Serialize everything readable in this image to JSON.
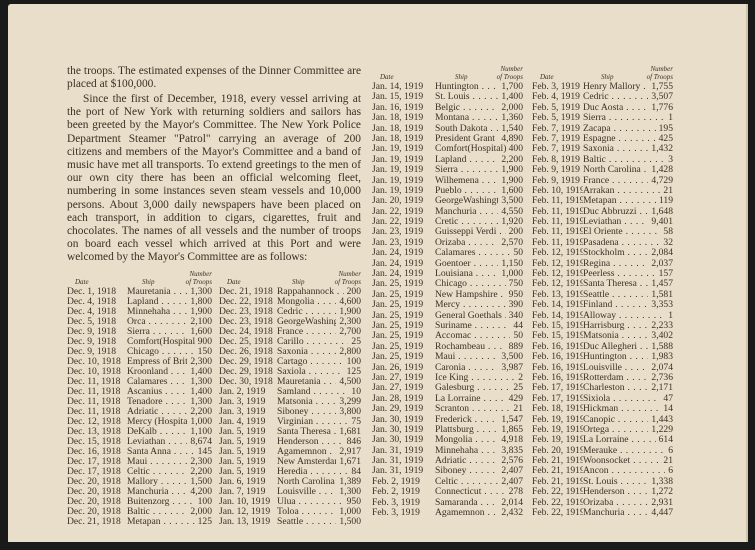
{
  "text": {
    "paragraph_1": "the troops. The estimated expenses of the Dinner Committee are placed at $100,000.",
    "paragraph_2": "Since the first of December, 1918, every vessel arriving at the port of New York with returning soldiers and sailors has been greeted by the Mayor's Committee. The New York Police Department Steamer \"Patrol\" carrying an average of 200 citizens and members of the Mayor's Committee and a band of music have met all transports. To extend greetings to the men of our own city there has been an official welcoming fleet, numbering in some instances seven steam vessels and 10,000 persons. About 3,000 daily newspapers have been placed on each transport, in addition to cigars, cigarettes, fruit and chocolates. The names of all vessels and the number of troops on board each vessel which arrived at this Port and were welcomed by the Mayor's Committee are as follows:"
  },
  "headers": {
    "date": "Date",
    "ship": "Ship",
    "number_1": "Number",
    "number_2": "of Troops"
  },
  "tables": [
    [
      [
        "Dec. 1, 1918",
        "Mauretania",
        "1,300"
      ],
      [
        "Dec. 4, 1918",
        "Lapland",
        "1,800"
      ],
      [
        "Dec. 4, 1918",
        "Minnehaha",
        "1,900"
      ],
      [
        "Dec. 5, 1918",
        "Orca",
        "2,100"
      ],
      [
        "Dec. 9, 1918",
        "Sierra",
        "1,600"
      ],
      [
        "Dec. 9, 1918",
        "Comfort(Hospital)",
        "900"
      ],
      [
        "Dec. 9, 1918",
        "Chicago",
        "150"
      ],
      [
        "Dec. 10, 1918",
        "Empress of Britain",
        "2,300"
      ],
      [
        "Dec. 10, 1918",
        "Kroonland",
        "1,400"
      ],
      [
        "Dec. 11, 1918",
        "Calamares",
        "1,300"
      ],
      [
        "Dec. 11, 1918",
        "Ascanius",
        "1,400"
      ],
      [
        "Dec. 11, 1918",
        "Tenadore",
        "1,300"
      ],
      [
        "Dec. 11, 1918",
        "Adriatic",
        "2,200"
      ],
      [
        "Dec. 12, 1918",
        "Mercy (Hospital)",
        "1,000"
      ],
      [
        "Dec. 13, 1918",
        "DeKalb",
        "1,100"
      ],
      [
        "Dec. 15, 1918",
        "Leviathan",
        "8,674"
      ],
      [
        "Dec. 16, 1918",
        "Santa Anna",
        "145"
      ],
      [
        "Dec. 17, 1918",
        "Maui",
        "2,300"
      ],
      [
        "Dec. 17, 1918",
        "Celtic",
        "2,200"
      ],
      [
        "Dec. 20, 1918",
        "Mallory",
        "1,500"
      ],
      [
        "Dec. 20, 1918",
        "Manchuria",
        "4,200"
      ],
      [
        "Dec. 20, 1918",
        "Buitenzorg",
        "100"
      ],
      [
        "Dec. 20, 1918",
        "Baltic",
        "2,000"
      ],
      [
        "Dec. 21, 1918",
        "Metapan",
        "125"
      ]
    ],
    [
      [
        "Dec. 21, 1918",
        "Rappahannock",
        "200"
      ],
      [
        "Dec. 22, 1918",
        "Mongolia",
        "4,600"
      ],
      [
        "Dec. 23, 1918",
        "Cedric",
        "1,900"
      ],
      [
        "Dec. 23, 1918",
        "GeorgeWashington",
        "2,300"
      ],
      [
        "Dec. 24, 1918",
        "France",
        "2,700"
      ],
      [
        "Dec. 25, 1918",
        "Carillo",
        "25"
      ],
      [
        "Dec. 26, 1918",
        "Saxonia",
        "2,800"
      ],
      [
        "Dec. 29, 1918",
        "Cartago",
        "100"
      ],
      [
        "Dec. 29, 1918",
        "Saxiola",
        "125"
      ],
      [
        "Dec. 30, 1918",
        "Mauretania",
        "4,500"
      ],
      [
        "Jan. 2, 1919",
        "Samland",
        "10"
      ],
      [
        "Jan. 3, 1919",
        "Matsonia",
        "3,299"
      ],
      [
        "Jan. 3, 1919",
        "Siboney",
        "3,800"
      ],
      [
        "Jan. 4, 1919",
        "Virginian",
        "75"
      ],
      [
        "Jan. 5, 1919",
        "Santa Theresa",
        "1,681"
      ],
      [
        "Jan. 5, 1919",
        "Henderson",
        "846"
      ],
      [
        "Jan. 5, 1919",
        "Agamemnon",
        "2,917"
      ],
      [
        "Jan. 5, 1919",
        "New Amsterdam",
        "1,671"
      ],
      [
        "Jan. 5, 1919",
        "Heredia",
        "84"
      ],
      [
        "Jan. 6, 1919",
        "North Carolina",
        "1,389"
      ],
      [
        "Jan. 7, 1919",
        "Louisville",
        "1,300"
      ],
      [
        "Jan. 10, 1919",
        "Ulua",
        "950"
      ],
      [
        "Jan. 12, 1919",
        "Toloa",
        "1,000"
      ],
      [
        "Jan. 13, 1919",
        "Seattle",
        "1,500"
      ]
    ],
    [
      [
        "Jan. 14, 1919",
        "Huntington",
        "1,700"
      ],
      [
        "Jan. 15, 1919",
        "St. Louis",
        "1,400"
      ],
      [
        "Jan. 16, 1919",
        "Belgic",
        "2,000"
      ],
      [
        "Jan. 18, 1919",
        "Montana",
        "1,360"
      ],
      [
        "Jan. 18, 1919",
        "South Dakota",
        "1,540"
      ],
      [
        "Jan. 18, 1919",
        "President Grant",
        "4,890"
      ],
      [
        "Jan. 19, 1919",
        "Comfort(Hospital)",
        "400"
      ],
      [
        "Jan. 19, 1919",
        "Lapland",
        "2,200"
      ],
      [
        "Jan. 19, 1919",
        "Sierra",
        "1,900"
      ],
      [
        "Jan. 19, 1919",
        "Wilhemena",
        "1,900"
      ],
      [
        "Jan. 19, 1919",
        "Pueblo",
        "1,600"
      ],
      [
        "Jan. 20, 1919",
        "GeorgeWashington",
        "3,500"
      ],
      [
        "Jan. 22, 1919",
        "Manchuria",
        "4,550"
      ],
      [
        "Jan. 22, 1919",
        "Cretic",
        "1,920"
      ],
      [
        "Jan. 23, 1919",
        "Guisseppi Verdi",
        "200"
      ],
      [
        "Jan. 23, 1919",
        "Orizaba",
        "2,570"
      ],
      [
        "Jan. 24, 1919",
        "Calamares",
        "50"
      ],
      [
        "Jan. 24, 1919",
        "Goentoer",
        "1,150"
      ],
      [
        "Jan. 24, 1919",
        "Louisiana",
        "1,000"
      ],
      [
        "Jan. 25, 1919",
        "Chicago",
        "750"
      ],
      [
        "Jan. 25, 1919",
        "New Hampshire",
        "950"
      ],
      [
        "Jan. 25, 1919",
        "Mercy",
        "390"
      ],
      [
        "Jan. 25, 1919",
        "General Goethals",
        "340"
      ],
      [
        "Jan. 25, 1919",
        "Suriname",
        "44"
      ],
      [
        "Jan. 25, 1919",
        "Accomac",
        "50"
      ],
      [
        "Jan. 25, 1919",
        "Rochambeau",
        "889"
      ],
      [
        "Jan. 25, 1919",
        "Maui",
        "3,500"
      ],
      [
        "Jan. 26, 1919",
        "Caronia",
        "3,987"
      ],
      [
        "Jan. 27, 1919",
        "Ice King",
        "2"
      ],
      [
        "Jan. 27, 1919",
        "Galesburg",
        "25"
      ],
      [
        "Jan. 28, 1919",
        "La Lorraine",
        "429"
      ],
      [
        "Jan. 29, 1919",
        "Scranton",
        "21"
      ],
      [
        "Jan. 30, 1919",
        "Frederick",
        "1,547"
      ],
      [
        "Jan. 30, 1919",
        "Plattsburg",
        "1,865"
      ],
      [
        "Jan. 30, 1919",
        "Mongolia",
        "4,918"
      ],
      [
        "Jan. 31, 1919",
        "Minnehaha",
        "3,835"
      ],
      [
        "Jan. 31, 1919",
        "Adriatic",
        "2,576"
      ],
      [
        "Jan. 31, 1919",
        "Siboney",
        "2,407"
      ],
      [
        "Feb. 2, 1919",
        "Celtic",
        "2,407"
      ],
      [
        "Feb. 2, 1919",
        "Connecticut",
        "278"
      ],
      [
        "Feb. 3, 1919",
        "Samaranda",
        "2,014"
      ],
      [
        "Feb. 3, 1919",
        "Agamemnon",
        "2,432"
      ]
    ],
    [
      [
        "Feb. 3, 1919",
        "Henry Mallory",
        "1,755"
      ],
      [
        "Feb. 4, 1919",
        "Cedric",
        "3,507"
      ],
      [
        "Feb. 5, 1919",
        "Duc Aosta",
        "1,776"
      ],
      [
        "Feb. 5, 1919",
        "Sierra",
        "1"
      ],
      [
        "Feb. 7, 1919",
        "Zacapa",
        "195"
      ],
      [
        "Feb. 7, 1919",
        "Espagne",
        "425"
      ],
      [
        "Feb. 7, 1919",
        "Saxonia",
        "1,432"
      ],
      [
        "Feb. 8, 1919",
        "Baltic",
        "3"
      ],
      [
        "Feb. 9, 1919",
        "North Carolina",
        "1,428"
      ],
      [
        "Feb. 9, 1919",
        "France",
        "4,729"
      ],
      [
        "Feb. 10, 1919",
        "Arrakan",
        "21"
      ],
      [
        "Feb. 11, 1919",
        "Metapan",
        "119"
      ],
      [
        "Feb. 11, 1919",
        "Duc Abbruzzi",
        "1,648"
      ],
      [
        "Feb. 11, 1919",
        "Leviathan",
        "9,401"
      ],
      [
        "Feb. 11, 1919",
        "El Oriente",
        "58"
      ],
      [
        "Feb. 11, 1919",
        "Pasadena",
        "32"
      ],
      [
        "Feb. 12, 1919",
        "Stockholm",
        "2,084"
      ],
      [
        "Feb. 12, 1919",
        "Regina",
        "2,037"
      ],
      [
        "Feb. 12, 1919",
        "Peerless",
        "157"
      ],
      [
        "Feb. 12, 1919",
        "Santa Theresa",
        "1,457"
      ],
      [
        "Feb. 13, 1919",
        "Seattle",
        "1,581"
      ],
      [
        "Feb. 14, 1919",
        "Finland",
        "3,353"
      ],
      [
        "Feb. 14, 1919",
        "Alloway",
        "1"
      ],
      [
        "Feb. 15, 1919",
        "Harrisburg",
        "2,233"
      ],
      [
        "Feb. 15, 1919",
        "Matsonia",
        "3,402"
      ],
      [
        "Feb. 16, 1919",
        "Duc Allegheri",
        "1,588"
      ],
      [
        "Feb. 16, 1919",
        "Huntington",
        "1,983"
      ],
      [
        "Feb. 16, 1919",
        "Louisville",
        "2,074"
      ],
      [
        "Feb. 16, 1919",
        "Rotterdam",
        "2,736"
      ],
      [
        "Feb. 17, 1919",
        "Charleston",
        "2,171"
      ],
      [
        "Feb. 17, 1919",
        "Sixiola",
        "47"
      ],
      [
        "Feb. 18, 1919",
        "Hickman",
        "14"
      ],
      [
        "Feb. 19, 1919",
        "Canopic",
        "1,443"
      ],
      [
        "Feb. 19, 1919",
        "Ortega",
        "1,229"
      ],
      [
        "Feb. 19, 1919",
        "La Lorraine",
        "614"
      ],
      [
        "Feb. 20, 1919",
        "Merauke",
        "6"
      ],
      [
        "Feb. 21, 1919",
        "Woonsocket",
        "21"
      ],
      [
        "Feb. 21, 1919",
        "Ancon",
        "6"
      ],
      [
        "Feb. 21, 1919",
        "St. Louis",
        "1,338"
      ],
      [
        "Feb. 22, 1919",
        "Henderson",
        "1,272"
      ],
      [
        "Feb. 22, 1919",
        "Orizaba",
        "2,931"
      ],
      [
        "Feb. 22, 1919",
        "Manchuria",
        "4,447"
      ]
    ]
  ]
}
